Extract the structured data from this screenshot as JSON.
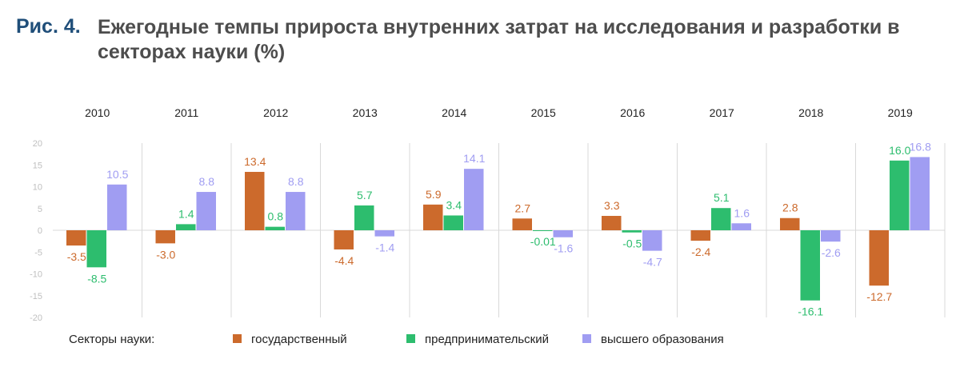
{
  "figure": {
    "label": "Рис. 4.",
    "title": "Ежегодные темпы прироста внутренних затрат на исследования и разработки в секторах науки (%)"
  },
  "legend": {
    "title": "Секторы науки:"
  },
  "colors": {
    "gov": "#cc6a2c",
    "biz": "#2dbd6e",
    "edu": "#a09df2",
    "grid": "#d9d9d9",
    "axis_text": "#bfbfbf"
  },
  "chart_data": {
    "type": "bar",
    "layout": "small-multiples",
    "categories": [
      "2010",
      "2011",
      "2012",
      "2013",
      "2014",
      "2015",
      "2016",
      "2017",
      "2018",
      "2019"
    ],
    "series": [
      {
        "name": "государственный",
        "values": [
          -3.5,
          -3.0,
          13.4,
          -4.4,
          5.9,
          2.7,
          3.3,
          -2.4,
          2.8,
          -12.7
        ],
        "labels": [
          "-3.5",
          "-3.0",
          "13.4",
          "-4.4",
          "5.9",
          "2.7",
          "3.3",
          "-2.4",
          "2.8",
          "-12.7"
        ]
      },
      {
        "name": "предпринимательский",
        "values": [
          -8.5,
          1.4,
          0.8,
          5.7,
          3.4,
          -0.01,
          -0.5,
          5.1,
          -16.1,
          16.0
        ],
        "labels": [
          "-8.5",
          "1.4",
          "0.8",
          "5.7",
          "3.4",
          "-0.01",
          "-0.5",
          "5.1",
          "-16.1",
          "16.0"
        ]
      },
      {
        "name": "высшего образования",
        "values": [
          10.5,
          8.8,
          8.8,
          -1.4,
          14.1,
          -1.6,
          -4.7,
          1.6,
          -2.6,
          16.8
        ],
        "labels": [
          "10.5",
          "8.8",
          "8.8",
          "-1.4",
          "14.1",
          "-1.6",
          "-4.7",
          "1.6",
          "-2.6",
          "16.8"
        ]
      }
    ],
    "ylim": [
      -20,
      20
    ],
    "yticks": [
      "20",
      "15",
      "10",
      "5",
      "0",
      "-5",
      "-10",
      "-15",
      "-20"
    ],
    "grid": true,
    "legend_position": "bottom"
  }
}
